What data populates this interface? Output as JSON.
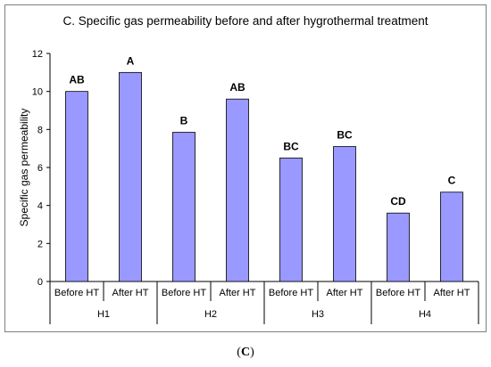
{
  "chart_data": {
    "type": "bar",
    "title": "C. Specific gas permeability before and after hygrothermal treatment",
    "ylabel": "Specific gas permeability",
    "xlabel": "",
    "ylim": [
      0,
      12
    ],
    "yticks": [
      0,
      2,
      4,
      6,
      8,
      10,
      12
    ],
    "grid": false,
    "bar_color": "#9999ff",
    "bar_edge": "#000000",
    "categories": [
      {
        "group": "H1",
        "label": "Before HT"
      },
      {
        "group": "H1",
        "label": "After HT"
      },
      {
        "group": "H2",
        "label": "Before HT"
      },
      {
        "group": "H2",
        "label": "After HT"
      },
      {
        "group": "H3",
        "label": "Before HT"
      },
      {
        "group": "H3",
        "label": "After HT"
      },
      {
        "group": "H4",
        "label": "Before HT"
      },
      {
        "group": "H4",
        "label": "After HT"
      }
    ],
    "groups": [
      "H1",
      "H2",
      "H3",
      "H4"
    ],
    "values": [
      10.0,
      11.0,
      7.85,
      9.6,
      6.5,
      7.1,
      3.6,
      4.7
    ],
    "data_labels": [
      "AB",
      "A",
      "B",
      "AB",
      "BC",
      "BC",
      "CD",
      "C"
    ]
  },
  "caption": {
    "open": "(",
    "letter": "C",
    "close": ")"
  }
}
